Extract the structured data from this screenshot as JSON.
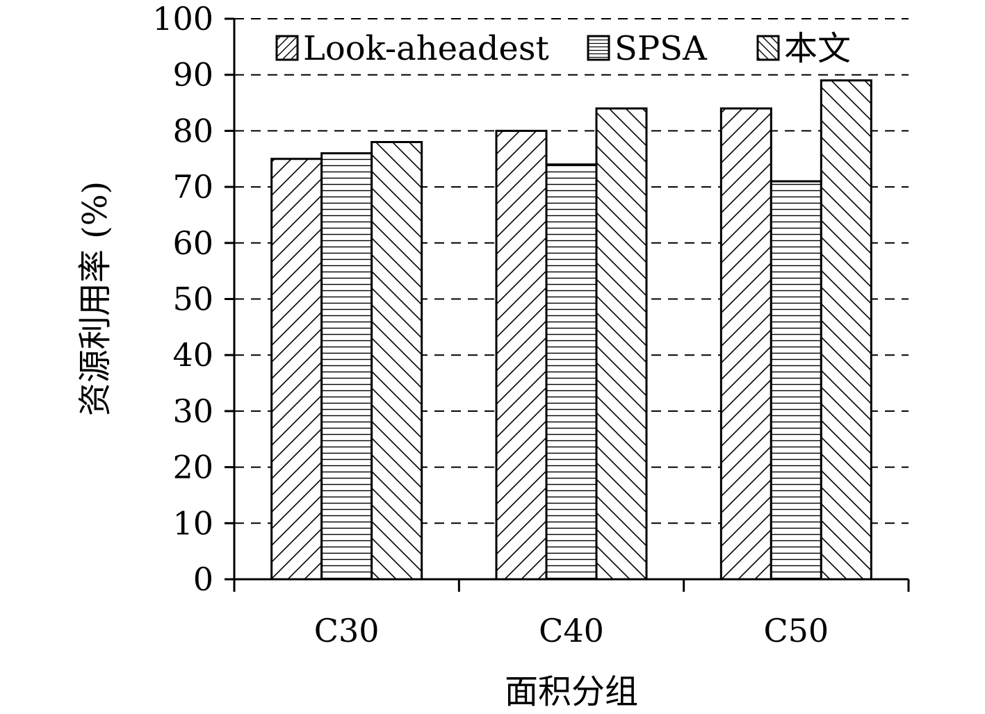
{
  "chart_data": {
    "type": "bar",
    "categories": [
      "C30",
      "C40",
      "C50"
    ],
    "series": [
      {
        "name": "Look-aheadest",
        "values": [
          75,
          80,
          84
        ],
        "pattern": "forward-diagonal-hatch"
      },
      {
        "name": "SPSA",
        "values": [
          76,
          74,
          71
        ],
        "pattern": "horizontal-hatch"
      },
      {
        "name": "本文",
        "values": [
          78,
          84,
          89
        ],
        "pattern": "backward-diagonal-hatch"
      }
    ],
    "ylabel": "资源利用率 (%)",
    "xlabel": "面积分组",
    "ylim": [
      0,
      100
    ],
    "yticks": [
      0,
      10,
      20,
      30,
      40,
      50,
      60,
      70,
      80,
      90,
      100
    ],
    "grid": "horizontal dashed",
    "legend_position": "top",
    "colors": {
      "bar_fill": "#ffffff",
      "stroke": "#000000",
      "grid": "#000000"
    }
  }
}
